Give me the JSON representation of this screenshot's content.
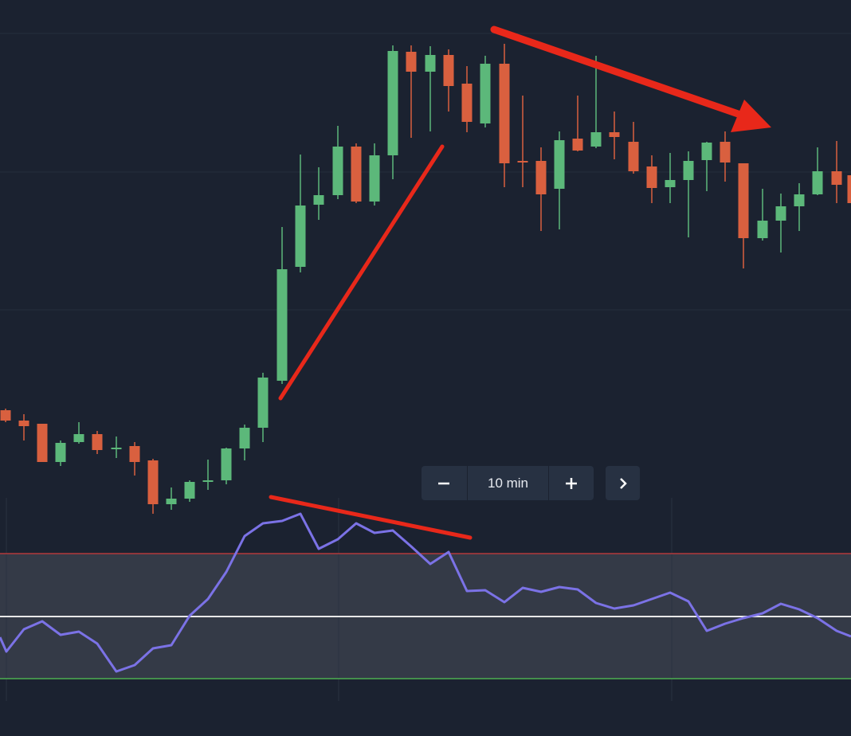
{
  "toolbar": {
    "timeframe": "10 min"
  }
}
